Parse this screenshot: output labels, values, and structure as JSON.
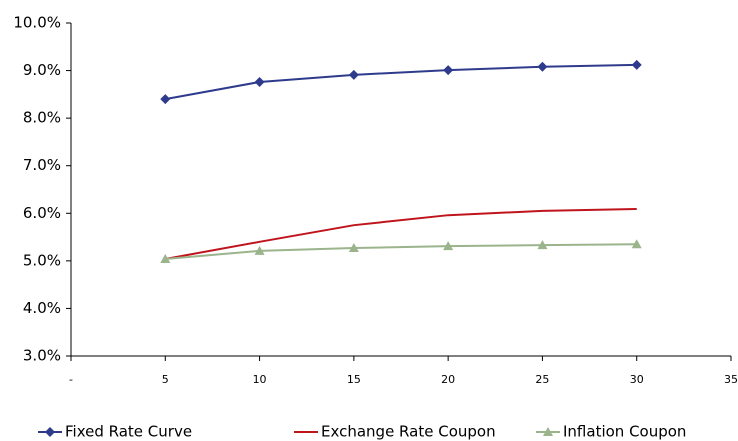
{
  "chart_data": {
    "type": "line",
    "x": [
      5,
      10,
      15,
      20,
      25,
      30
    ],
    "series": [
      {
        "name": "Fixed Rate Curve",
        "color": "#2e3b8c",
        "marker": "diamond",
        "values": [
          8.4,
          8.76,
          8.91,
          9.01,
          9.08,
          9.12
        ]
      },
      {
        "name": "Exchange Rate Coupon",
        "color": "#c0141c",
        "marker": "none",
        "values": [
          5.04,
          5.4,
          5.75,
          5.96,
          6.05,
          6.09
        ]
      },
      {
        "name": "Inflation Coupon",
        "color": "#9bb48c",
        "marker": "triangle",
        "values": [
          5.04,
          5.21,
          5.27,
          5.31,
          5.33,
          5.35
        ]
      }
    ],
    "xlim": [
      0,
      35
    ],
    "xticks": [
      {
        "value": 0,
        "label": "-"
      },
      5,
      10,
      15,
      20,
      25,
      30,
      35
    ],
    "ylim": [
      3,
      10
    ],
    "yticks": [
      {
        "value": 3,
        "label": "3.0%"
      },
      {
        "value": 4,
        "label": "4.0%"
      },
      {
        "value": 5,
        "label": "5.0%"
      },
      {
        "value": 6,
        "label": "6.0%"
      },
      {
        "value": 7,
        "label": "7.0%"
      },
      {
        "value": 8,
        "label": "8.0%"
      },
      {
        "value": 9,
        "label": "9.0%"
      },
      {
        "value": 10,
        "label": "10.0%"
      }
    ],
    "grid": false,
    "legend": "bottom"
  }
}
